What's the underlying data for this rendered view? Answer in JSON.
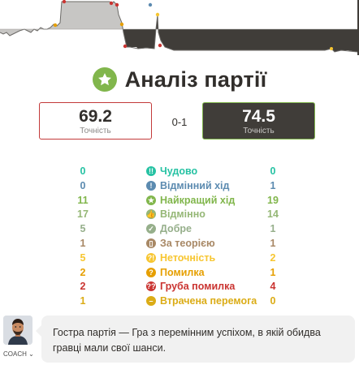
{
  "title": "Аналіз партії",
  "colors": {
    "accent_green": "#81b64c",
    "white_border": "#c33a3a",
    "dark_box": "#403d39"
  },
  "accuracy": {
    "white": {
      "value": "69.2",
      "label": "Точність"
    },
    "black": {
      "value": "74.5",
      "label": "Точність"
    },
    "result": "0-1"
  },
  "classifications": [
    {
      "label": "Чудово",
      "white": "0",
      "black": "0",
      "color": "#26c2a3",
      "icon": "brilliant-icon",
      "glyph": "!!"
    },
    {
      "label": "Відмінний хід",
      "white": "0",
      "black": "1",
      "color": "#5c8bb0",
      "icon": "great-move-icon",
      "glyph": "!"
    },
    {
      "label": "Найкращий хід",
      "white": "11",
      "black": "19",
      "color": "#81b64c",
      "icon": "best-move-icon",
      "glyph": "★"
    },
    {
      "label": "Відмінно",
      "white": "17",
      "black": "14",
      "color": "#95b776",
      "icon": "excellent-icon",
      "glyph": "👍"
    },
    {
      "label": "Добре",
      "white": "5",
      "black": "1",
      "color": "#96af8b",
      "icon": "good-icon",
      "glyph": "✓"
    },
    {
      "label": "За теорією",
      "white": "1",
      "black": "1",
      "color": "#a88865",
      "icon": "book-icon",
      "glyph": "▯"
    },
    {
      "label": "Неточність",
      "white": "5",
      "black": "2",
      "color": "#f7c631",
      "icon": "inaccuracy-icon",
      "glyph": "?!"
    },
    {
      "label": "Помилка",
      "white": "2",
      "black": "1",
      "color": "#e69f00",
      "icon": "mistake-icon",
      "glyph": "?"
    },
    {
      "label": "Груба помилка",
      "white": "2",
      "black": "4",
      "color": "#ca3431",
      "icon": "blunder-icon",
      "glyph": "??"
    },
    {
      "label": "Втрачена перемога",
      "white": "1",
      "black": "0",
      "color": "#dbac16",
      "icon": "missed-win-icon",
      "glyph": "–"
    }
  ],
  "coach": {
    "label": "COACH ⌄",
    "message": "Гостра партія — Гра з перемінним успіхом, в якій обидва гравці мали свої шанси."
  }
}
